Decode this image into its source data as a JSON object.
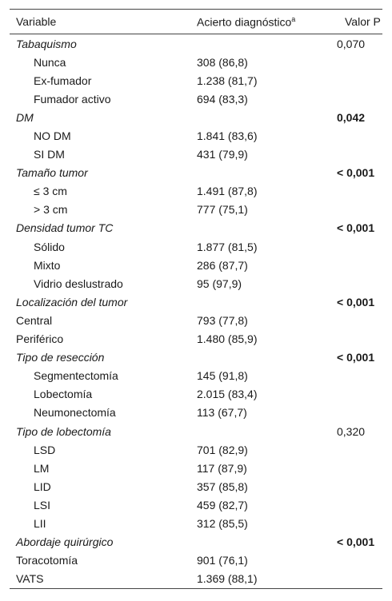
{
  "header": {
    "variable": "Variable",
    "acierto": "Acierto diagnóstico",
    "acierto_sup": "a",
    "valor_p": "Valor P"
  },
  "rows": [
    {
      "type": "group",
      "label": "Tabaquismo",
      "value": "",
      "p": "0,070",
      "bold": false
    },
    {
      "type": "indent",
      "label": "Nunca",
      "value": "308 (86,8)",
      "p": ""
    },
    {
      "type": "indent",
      "label": "Ex-fumador",
      "value": "1.238 (81,7)",
      "p": ""
    },
    {
      "type": "indent",
      "label": "Fumador activo",
      "value": "694 (83,3)",
      "p": ""
    },
    {
      "type": "group",
      "label": "DM",
      "value": "",
      "p": "0,042",
      "bold": true
    },
    {
      "type": "indent",
      "label": "NO DM",
      "value": "1.841 (83,6)",
      "p": ""
    },
    {
      "type": "indent",
      "label": "SI DM",
      "value": "431 (79,9)",
      "p": ""
    },
    {
      "type": "group",
      "label": "Tamaño tumor",
      "value": "",
      "p": "< 0,001",
      "bold": true
    },
    {
      "type": "indent",
      "label": "≤ 3 cm",
      "value": "1.491 (87,8)",
      "p": ""
    },
    {
      "type": "indent",
      "label": "> 3 cm",
      "value": "777 (75,1)",
      "p": ""
    },
    {
      "type": "group",
      "label": "Densidad tumor TC",
      "value": "",
      "p": "< 0,001",
      "bold": true
    },
    {
      "type": "indent",
      "label": "Sólido",
      "value": "1.877 (81,5)",
      "p": ""
    },
    {
      "type": "indent",
      "label": "Mixto",
      "value": "286 (87,7)",
      "p": ""
    },
    {
      "type": "indent",
      "label": "Vidrio deslustrado",
      "value": "95 (97,9)",
      "p": ""
    },
    {
      "type": "group",
      "label": "Localización del tumor",
      "value": "",
      "p": "< 0,001",
      "bold": true
    },
    {
      "type": "plain",
      "label": "Central",
      "value": "793 (77,8)",
      "p": ""
    },
    {
      "type": "plain",
      "label": "Periférico",
      "value": "1.480 (85,9)",
      "p": ""
    },
    {
      "type": "group",
      "label": "Tipo de resección",
      "value": "",
      "p": "< 0,001",
      "bold": true
    },
    {
      "type": "indent",
      "label": "Segmentectomía",
      "value": "145 (91,8)",
      "p": ""
    },
    {
      "type": "indent",
      "label": "Lobectomía",
      "value": "2.015 (83,4)",
      "p": ""
    },
    {
      "type": "indent",
      "label": "Neumonectomía",
      "value": "113 (67,7)",
      "p": ""
    },
    {
      "type": "group",
      "label": "Tipo de lobectomía",
      "value": "",
      "p": "0,320",
      "bold": false
    },
    {
      "type": "indent",
      "label": "LSD",
      "value": "701 (82,9)",
      "p": ""
    },
    {
      "type": "indent",
      "label": "LM",
      "value": "117 (87,9)",
      "p": ""
    },
    {
      "type": "indent",
      "label": "LID",
      "value": "357 (85,8)",
      "p": ""
    },
    {
      "type": "indent",
      "label": "LSI",
      "value": "459 (82,7)",
      "p": ""
    },
    {
      "type": "indent",
      "label": "LII",
      "value": "312 (85,5)",
      "p": ""
    },
    {
      "type": "group",
      "label": "Abordaje quirúrgico",
      "value": "",
      "p": "< 0,001",
      "bold": true
    },
    {
      "type": "plain",
      "label": "Toracotomía",
      "value": "901 (76,1)",
      "p": ""
    },
    {
      "type": "plain",
      "label": "VATS",
      "value": "1.369 (88,1)",
      "p": ""
    }
  ]
}
